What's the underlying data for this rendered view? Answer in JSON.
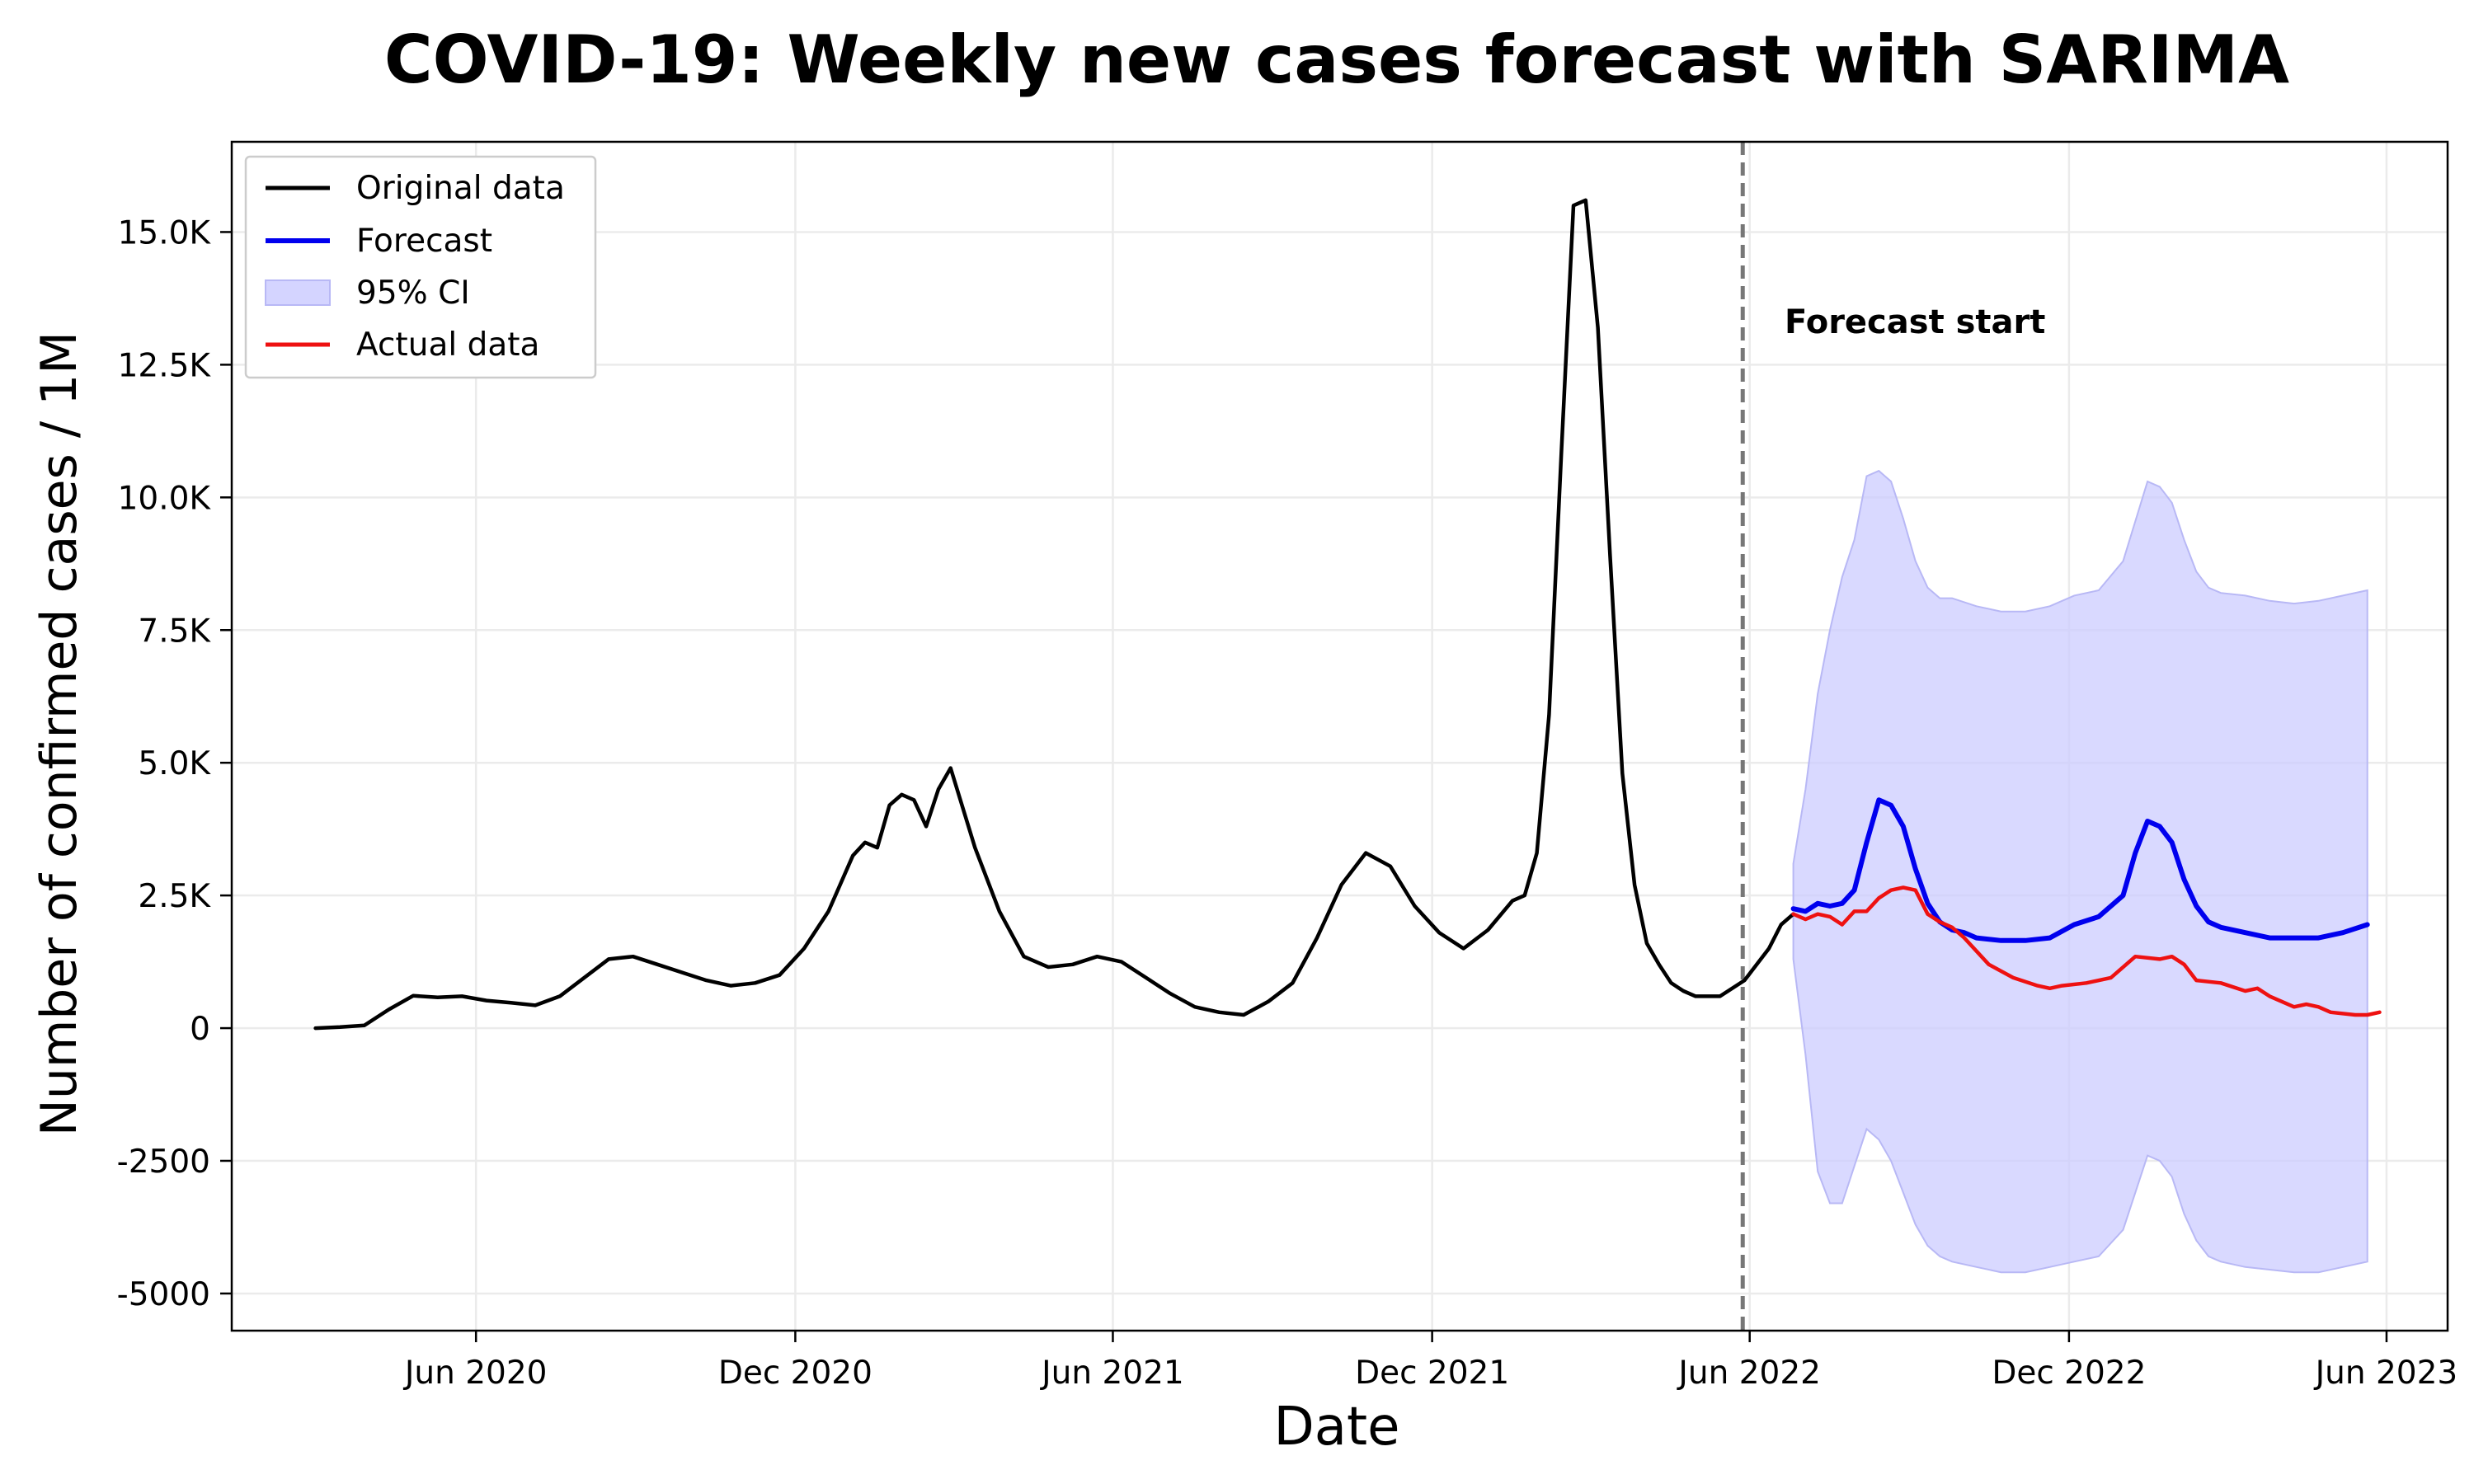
{
  "chart_data": {
    "type": "line",
    "title": "COVID-19: Weekly new cases forecast with SARIMA",
    "xlabel": "Date",
    "ylabel": "Number of confirmed cases / 1M",
    "xlim": [
      "2020-01-13",
      "2023-07-06"
    ],
    "ylim": [
      -5700,
      16700
    ],
    "grid": true,
    "legend_position": "top-left",
    "x_ticks": [
      {
        "date": "2020-06-01",
        "label": "Jun 2020"
      },
      {
        "date": "2020-12-01",
        "label": "Dec 2020"
      },
      {
        "date": "2021-06-01",
        "label": "Jun 2021"
      },
      {
        "date": "2021-12-01",
        "label": "Dec 2021"
      },
      {
        "date": "2022-06-01",
        "label": "Jun 2022"
      },
      {
        "date": "2022-12-01",
        "label": "Dec 2022"
      },
      {
        "date": "2023-06-01",
        "label": "Jun 2023"
      }
    ],
    "y_ticks": [
      {
        "value": 15000,
        "label": "15.0K"
      },
      {
        "value": 12500,
        "label": "12.5K"
      },
      {
        "value": 10000,
        "label": "10.0K"
      },
      {
        "value": 7500,
        "label": "7.5K"
      },
      {
        "value": 5000,
        "label": "5.0K"
      },
      {
        "value": 2500,
        "label": "2.5K"
      },
      {
        "value": 0,
        "label": "0"
      },
      {
        "value": -2500,
        "label": "-2500"
      },
      {
        "value": -5000,
        "label": "-5000"
      }
    ],
    "annotation": {
      "text": "Forecast start",
      "date": "2022-06-21",
      "y": 13100
    },
    "forecast_start": "2022-05-28",
    "series": [
      {
        "name": "Original data",
        "color": "#000000",
        "points": [
          [
            "2020-03-01",
            0
          ],
          [
            "2020-03-15",
            20
          ],
          [
            "2020-03-29",
            50
          ],
          [
            "2020-04-12",
            350
          ],
          [
            "2020-04-26",
            610
          ],
          [
            "2020-05-10",
            580
          ],
          [
            "2020-05-24",
            600
          ],
          [
            "2020-06-07",
            520
          ],
          [
            "2020-06-21",
            480
          ],
          [
            "2020-07-05",
            430
          ],
          [
            "2020-07-19",
            600
          ],
          [
            "2020-08-02",
            950
          ],
          [
            "2020-08-16",
            1300
          ],
          [
            "2020-08-30",
            1350
          ],
          [
            "2020-09-13",
            1200
          ],
          [
            "2020-09-27",
            1050
          ],
          [
            "2020-10-11",
            900
          ],
          [
            "2020-10-25",
            800
          ],
          [
            "2020-11-08",
            850
          ],
          [
            "2020-11-22",
            1000
          ],
          [
            "2020-12-06",
            1500
          ],
          [
            "2020-12-20",
            2200
          ],
          [
            "2021-01-03",
            3250
          ],
          [
            "2021-01-10",
            3500
          ],
          [
            "2021-01-17",
            3400
          ],
          [
            "2021-01-24",
            4200
          ],
          [
            "2021-01-31",
            4400
          ],
          [
            "2021-02-07",
            4300
          ],
          [
            "2021-02-14",
            3800
          ],
          [
            "2021-02-21",
            4500
          ],
          [
            "2021-02-28",
            4900
          ],
          [
            "2021-03-14",
            3400
          ],
          [
            "2021-03-28",
            2200
          ],
          [
            "2021-04-11",
            1350
          ],
          [
            "2021-04-25",
            1150
          ],
          [
            "2021-05-09",
            1200
          ],
          [
            "2021-05-23",
            1350
          ],
          [
            "2021-06-06",
            1250
          ],
          [
            "2021-06-20",
            950
          ],
          [
            "2021-07-04",
            650
          ],
          [
            "2021-07-18",
            400
          ],
          [
            "2021-08-01",
            300
          ],
          [
            "2021-08-15",
            250
          ],
          [
            "2021-08-29",
            500
          ],
          [
            "2021-09-12",
            850
          ],
          [
            "2021-09-26",
            1700
          ],
          [
            "2021-10-10",
            2700
          ],
          [
            "2021-10-24",
            3300
          ],
          [
            "2021-11-07",
            3050
          ],
          [
            "2021-11-21",
            2300
          ],
          [
            "2021-12-05",
            1800
          ],
          [
            "2021-12-19",
            1500
          ],
          [
            "2022-01-02",
            1850
          ],
          [
            "2022-01-16",
            2400
          ],
          [
            "2022-01-23",
            2500
          ],
          [
            "2022-01-30",
            3300
          ],
          [
            "2022-02-06",
            5900
          ],
          [
            "2022-02-13",
            10800
          ],
          [
            "2022-02-20",
            15500
          ],
          [
            "2022-02-27",
            15600
          ],
          [
            "2022-03-06",
            13200
          ],
          [
            "2022-03-13",
            8900
          ],
          [
            "2022-03-20",
            4800
          ],
          [
            "2022-03-27",
            2700
          ],
          [
            "2022-04-03",
            1600
          ],
          [
            "2022-04-10",
            1200
          ],
          [
            "2022-04-17",
            850
          ],
          [
            "2022-04-24",
            700
          ],
          [
            "2022-05-01",
            600
          ],
          [
            "2022-05-15",
            600
          ],
          [
            "2022-05-29",
            900
          ],
          [
            "2022-06-12",
            1500
          ],
          [
            "2022-06-19",
            1950
          ],
          [
            "2022-06-26",
            2150
          ]
        ]
      },
      {
        "name": "Forecast",
        "color": "#0000ee",
        "points": [
          [
            "2022-06-26",
            2250
          ],
          [
            "2022-07-03",
            2200
          ],
          [
            "2022-07-10",
            2350
          ],
          [
            "2022-07-17",
            2300
          ],
          [
            "2022-07-24",
            2350
          ],
          [
            "2022-07-31",
            2600
          ],
          [
            "2022-08-07",
            3500
          ],
          [
            "2022-08-14",
            4300
          ],
          [
            "2022-08-21",
            4200
          ],
          [
            "2022-08-28",
            3800
          ],
          [
            "2022-09-04",
            3000
          ],
          [
            "2022-09-11",
            2350
          ],
          [
            "2022-09-18",
            2000
          ],
          [
            "2022-09-25",
            1850
          ],
          [
            "2022-10-02",
            1800
          ],
          [
            "2022-10-09",
            1700
          ],
          [
            "2022-10-23",
            1650
          ],
          [
            "2022-11-06",
            1650
          ],
          [
            "2022-11-20",
            1700
          ],
          [
            "2022-12-04",
            1950
          ],
          [
            "2022-12-18",
            2100
          ],
          [
            "2023-01-01",
            2500
          ],
          [
            "2023-01-08",
            3300
          ],
          [
            "2023-01-15",
            3900
          ],
          [
            "2023-01-22",
            3800
          ],
          [
            "2023-01-29",
            3500
          ],
          [
            "2023-02-05",
            2800
          ],
          [
            "2023-02-12",
            2300
          ],
          [
            "2023-02-19",
            2000
          ],
          [
            "2023-02-26",
            1900
          ],
          [
            "2023-03-12",
            1800
          ],
          [
            "2023-03-26",
            1700
          ],
          [
            "2023-04-09",
            1700
          ],
          [
            "2023-04-23",
            1700
          ],
          [
            "2023-05-07",
            1800
          ],
          [
            "2023-05-21",
            1950
          ]
        ]
      },
      {
        "name": "Actual data",
        "color": "#ee1111",
        "points": [
          [
            "2022-06-26",
            2150
          ],
          [
            "2022-07-03",
            2050
          ],
          [
            "2022-07-10",
            2150
          ],
          [
            "2022-07-17",
            2100
          ],
          [
            "2022-07-24",
            1950
          ],
          [
            "2022-07-31",
            2200
          ],
          [
            "2022-08-07",
            2200
          ],
          [
            "2022-08-14",
            2450
          ],
          [
            "2022-08-21",
            2600
          ],
          [
            "2022-08-28",
            2650
          ],
          [
            "2022-09-04",
            2600
          ],
          [
            "2022-09-11",
            2150
          ],
          [
            "2022-09-18",
            2000
          ],
          [
            "2022-09-25",
            1900
          ],
          [
            "2022-10-02",
            1700
          ],
          [
            "2022-10-16",
            1200
          ],
          [
            "2022-10-30",
            950
          ],
          [
            "2022-11-13",
            800
          ],
          [
            "2022-11-20",
            750
          ],
          [
            "2022-11-27",
            800
          ],
          [
            "2022-12-11",
            850
          ],
          [
            "2022-12-25",
            950
          ],
          [
            "2023-01-08",
            1350
          ],
          [
            "2023-01-22",
            1300
          ],
          [
            "2023-01-29",
            1350
          ],
          [
            "2023-02-05",
            1200
          ],
          [
            "2023-02-12",
            900
          ],
          [
            "2023-02-26",
            850
          ],
          [
            "2023-03-12",
            700
          ],
          [
            "2023-03-19",
            750
          ],
          [
            "2023-03-26",
            600
          ],
          [
            "2023-04-09",
            400
          ],
          [
            "2023-04-16",
            450
          ],
          [
            "2023-04-23",
            400
          ],
          [
            "2023-04-30",
            300
          ],
          [
            "2023-05-14",
            250
          ],
          [
            "2023-05-21",
            250
          ],
          [
            "2023-05-28",
            300
          ]
        ]
      }
    ],
    "confidence_interval": {
      "name": "95% CI",
      "color": "#ccccff",
      "points": [
        [
          "2022-06-26",
          3100,
          1300
        ],
        [
          "2022-07-03",
          4500,
          -500
        ],
        [
          "2022-07-10",
          6300,
          -2700
        ],
        [
          "2022-07-17",
          7500,
          -3300
        ],
        [
          "2022-07-24",
          8500,
          -3300
        ],
        [
          "2022-07-31",
          9200,
          -2600
        ],
        [
          "2022-08-07",
          10400,
          -1900
        ],
        [
          "2022-08-14",
          10500,
          -2100
        ],
        [
          "2022-08-21",
          10300,
          -2500
        ],
        [
          "2022-08-28",
          9600,
          -3100
        ],
        [
          "2022-09-04",
          8800,
          -3700
        ],
        [
          "2022-09-11",
          8300,
          -4100
        ],
        [
          "2022-09-18",
          8100,
          -4300
        ],
        [
          "2022-09-25",
          8100,
          -4400
        ],
        [
          "2022-10-09",
          7950,
          -4500
        ],
        [
          "2022-10-23",
          7850,
          -4600
        ],
        [
          "2022-11-06",
          7850,
          -4600
        ],
        [
          "2022-11-20",
          7950,
          -4500
        ],
        [
          "2022-12-04",
          8150,
          -4400
        ],
        [
          "2022-12-18",
          8250,
          -4300
        ],
        [
          "2023-01-01",
          8800,
          -3800
        ],
        [
          "2023-01-15",
          10300,
          -2400
        ],
        [
          "2023-01-22",
          10200,
          -2500
        ],
        [
          "2023-01-29",
          9900,
          -2800
        ],
        [
          "2023-02-05",
          9200,
          -3500
        ],
        [
          "2023-02-12",
          8600,
          -4000
        ],
        [
          "2023-02-19",
          8300,
          -4300
        ],
        [
          "2023-02-26",
          8200,
          -4400
        ],
        [
          "2023-03-12",
          8150,
          -4500
        ],
        [
          "2023-03-26",
          8050,
          -4550
        ],
        [
          "2023-04-09",
          8000,
          -4600
        ],
        [
          "2023-04-23",
          8050,
          -4600
        ],
        [
          "2023-05-07",
          8150,
          -4500
        ],
        [
          "2023-05-21",
          8250,
          -4400
        ]
      ]
    }
  }
}
